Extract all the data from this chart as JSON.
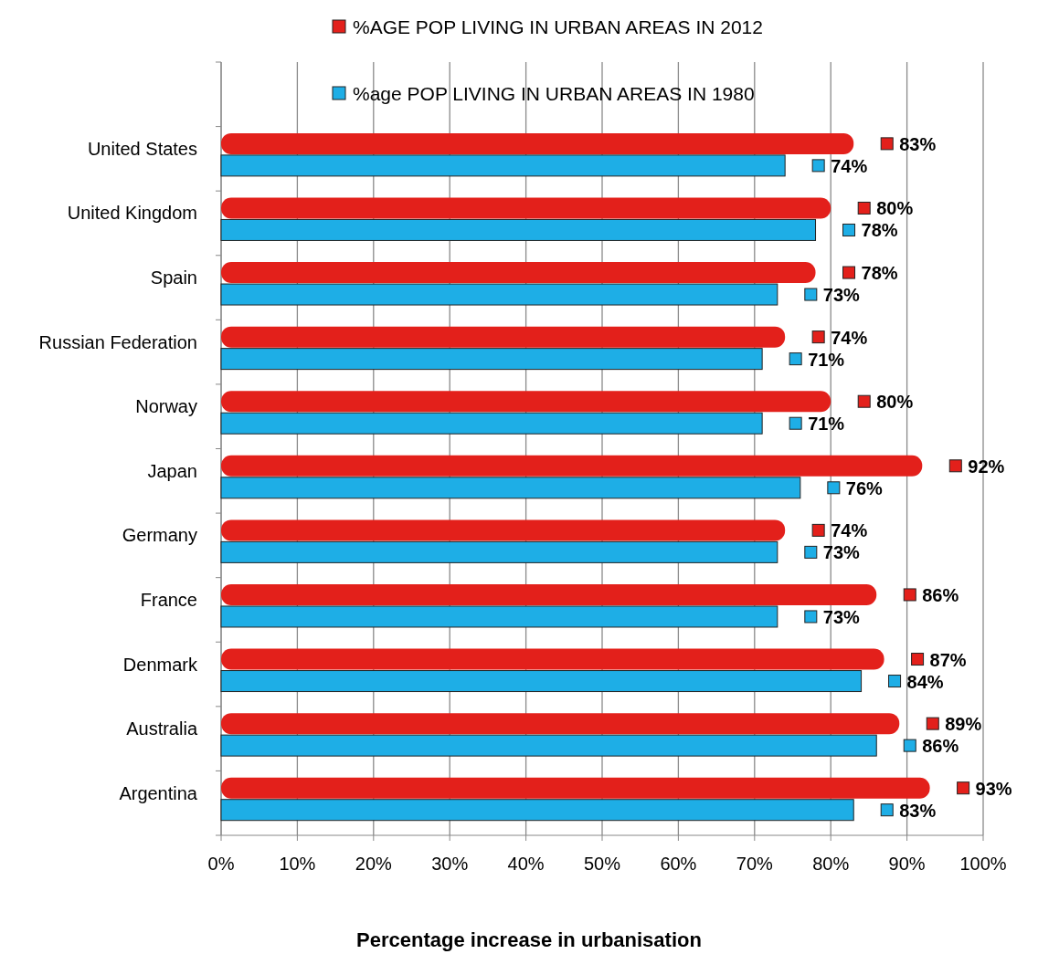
{
  "chart_data": {
    "type": "bar",
    "orientation": "horizontal",
    "xlabel": "Percentage increase in urbanisation",
    "categories": [
      "United States",
      "United Kingdom",
      "Spain",
      "Russian Federation",
      "Norway",
      "Japan",
      "Germany",
      "France",
      "Denmark",
      "Australia",
      "Argentina"
    ],
    "series": [
      {
        "name": "%AGE POP LIVING IN URBAN AREAS IN 2012",
        "color": "#e3201b",
        "values": [
          83,
          80,
          78,
          74,
          80,
          92,
          74,
          86,
          87,
          89,
          93
        ],
        "value_labels": [
          "83%",
          "80%",
          "78%",
          "74%",
          "80%",
          "92%",
          "74%",
          "86%",
          "87%",
          "89%",
          "93%"
        ]
      },
      {
        "name": "%age POP LIVING IN URBAN AREAS IN 1980",
        "color": "#1eaee6",
        "values": [
          74,
          78,
          73,
          71,
          71,
          76,
          73,
          73,
          84,
          86,
          83
        ],
        "value_labels": [
          "74%",
          "78%",
          "73%",
          "71%",
          "71%",
          "76%",
          "73%",
          "73%",
          "84%",
          "86%",
          "83%"
        ]
      }
    ],
    "xlim": [
      0,
      100
    ],
    "xticks": [
      {
        "value": 0,
        "label": "0%"
      },
      {
        "value": 10,
        "label": "10%"
      },
      {
        "value": 20,
        "label": "20%"
      },
      {
        "value": 30,
        "label": "30%"
      },
      {
        "value": 40,
        "label": "40%"
      },
      {
        "value": 50,
        "label": "50%"
      },
      {
        "value": 60,
        "label": "60%"
      },
      {
        "value": 70,
        "label": "70%"
      },
      {
        "value": 80,
        "label": "80%"
      },
      {
        "value": 90,
        "label": "90%"
      },
      {
        "value": 100,
        "label": "100%"
      }
    ],
    "grid": "x",
    "legend": "top"
  }
}
